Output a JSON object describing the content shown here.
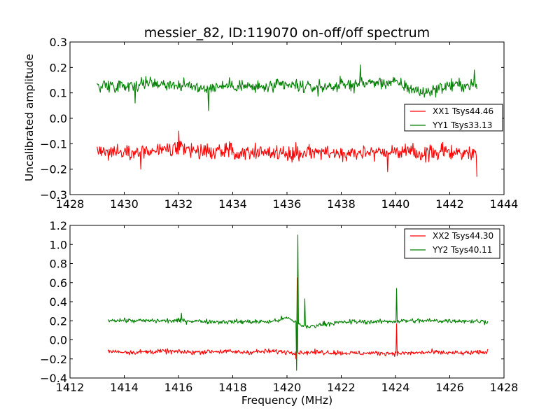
{
  "chart_data": [
    {
      "type": "line",
      "title": "messier_82, ID:119070 on-off/off spectrum",
      "xlabel": "",
      "ylabel": "Uncalibrated amplitude",
      "xlim": [
        1428,
        1444
      ],
      "ylim": [
        -0.3,
        0.3
      ],
      "xticks": [
        1428,
        1430,
        1432,
        1434,
        1436,
        1438,
        1440,
        1442,
        1444
      ],
      "yticks": [
        -0.3,
        -0.2,
        -0.1,
        0.0,
        0.1,
        0.2,
        0.3
      ],
      "xtick_labels": [
        "1428",
        "1430",
        "1432",
        "1434",
        "1436",
        "1438",
        "1440",
        "1442",
        "1444"
      ],
      "ytick_labels": [
        "−0.3",
        "−0.2",
        "−0.1",
        "0.0",
        "0.1",
        "0.2",
        "0.3"
      ],
      "grid": false,
      "legend_position": "center-right",
      "series": [
        {
          "name": "XX1 Tsys44.46",
          "color": "#ff0000",
          "x": [
            1429.0,
            1430.0,
            1431.0,
            1432.0,
            1433.0,
            1434.0,
            1435.0,
            1436.0,
            1437.0,
            1438.0,
            1439.0,
            1440.0,
            1441.0,
            1442.0,
            1443.0
          ],
          "values": [
            -0.13,
            -0.13,
            -0.13,
            -0.12,
            -0.13,
            -0.13,
            -0.13,
            -0.14,
            -0.13,
            -0.14,
            -0.13,
            -0.13,
            -0.14,
            -0.13,
            -0.14
          ],
          "spread": 0.03,
          "spikes": [
            [
              1432.0,
              -0.05
            ],
            [
              1443.0,
              -0.23
            ],
            [
              1439.7,
              -0.21
            ],
            [
              1430.6,
              -0.2
            ]
          ]
        },
        {
          "name": "YY1 Tsys33.13",
          "color": "#008000",
          "x": [
            1429.0,
            1430.0,
            1431.0,
            1432.0,
            1433.0,
            1434.0,
            1435.0,
            1436.0,
            1437.0,
            1438.0,
            1439.0,
            1440.0,
            1441.0,
            1442.0,
            1443.0
          ],
          "values": [
            0.13,
            0.13,
            0.14,
            0.13,
            0.12,
            0.13,
            0.12,
            0.13,
            0.12,
            0.13,
            0.14,
            0.14,
            0.1,
            0.13,
            0.13
          ],
          "spread": 0.025,
          "spikes": [
            [
              1438.7,
              0.21
            ],
            [
              1433.1,
              0.03
            ],
            [
              1430.4,
              0.06
            ],
            [
              1442.9,
              0.19
            ]
          ]
        }
      ]
    },
    {
      "type": "line",
      "title": "",
      "xlabel": "Frequency (MHz)",
      "ylabel": "",
      "xlim": [
        1412,
        1428
      ],
      "ylim": [
        -0.4,
        1.2
      ],
      "xticks": [
        1412,
        1414,
        1416,
        1418,
        1420,
        1422,
        1424,
        1426,
        1428
      ],
      "yticks": [
        -0.4,
        -0.2,
        0.0,
        0.2,
        0.4,
        0.6,
        0.8,
        1.0,
        1.2
      ],
      "xtick_labels": [
        "1412",
        "1414",
        "1416",
        "1418",
        "1420",
        "1422",
        "1424",
        "1426",
        "1428"
      ],
      "ytick_labels": [
        "−0.4",
        "−0.2",
        "0.0",
        "0.2",
        "0.4",
        "0.6",
        "0.8",
        "1.0",
        "1.2"
      ],
      "grid": false,
      "legend_position": "top-right",
      "series": [
        {
          "name": "XX2 Tsys44.30",
          "color": "#ff0000",
          "x": [
            1413.4,
            1414.4,
            1415.4,
            1416.4,
            1417.4,
            1418.4,
            1419.4,
            1420.4,
            1421.4,
            1422.4,
            1423.4,
            1424.4,
            1425.4,
            1426.4,
            1427.4
          ],
          "values": [
            -0.12,
            -0.13,
            -0.12,
            -0.13,
            -0.12,
            -0.13,
            -0.12,
            -0.13,
            -0.13,
            -0.14,
            -0.14,
            -0.14,
            -0.13,
            -0.14,
            -0.13
          ],
          "spread": 0.025,
          "spikes": [
            [
              1420.38,
              0.65
            ],
            [
              1420.33,
              -0.2
            ],
            [
              1424.03,
              0.17
            ],
            [
              1420.7,
              -0.14
            ]
          ]
        },
        {
          "name": "YY2 Tsys40.11",
          "color": "#008000",
          "x": [
            1413.4,
            1414.4,
            1415.4,
            1416.4,
            1417.4,
            1418.4,
            1419.4,
            1420.0,
            1420.3,
            1420.7,
            1421.4,
            1422.4,
            1423.4,
            1424.4,
            1425.4,
            1426.4,
            1427.4
          ],
          "values": [
            0.21,
            0.2,
            0.2,
            0.2,
            0.19,
            0.19,
            0.19,
            0.23,
            0.19,
            0.13,
            0.17,
            0.19,
            0.19,
            0.2,
            0.2,
            0.2,
            0.19
          ],
          "spread": 0.025,
          "spikes": [
            [
              1420.4,
              1.1
            ],
            [
              1420.36,
              -0.32
            ],
            [
              1420.65,
              0.43
            ],
            [
              1424.04,
              0.54
            ],
            [
              1416.1,
              0.28
            ]
          ]
        }
      ]
    }
  ]
}
